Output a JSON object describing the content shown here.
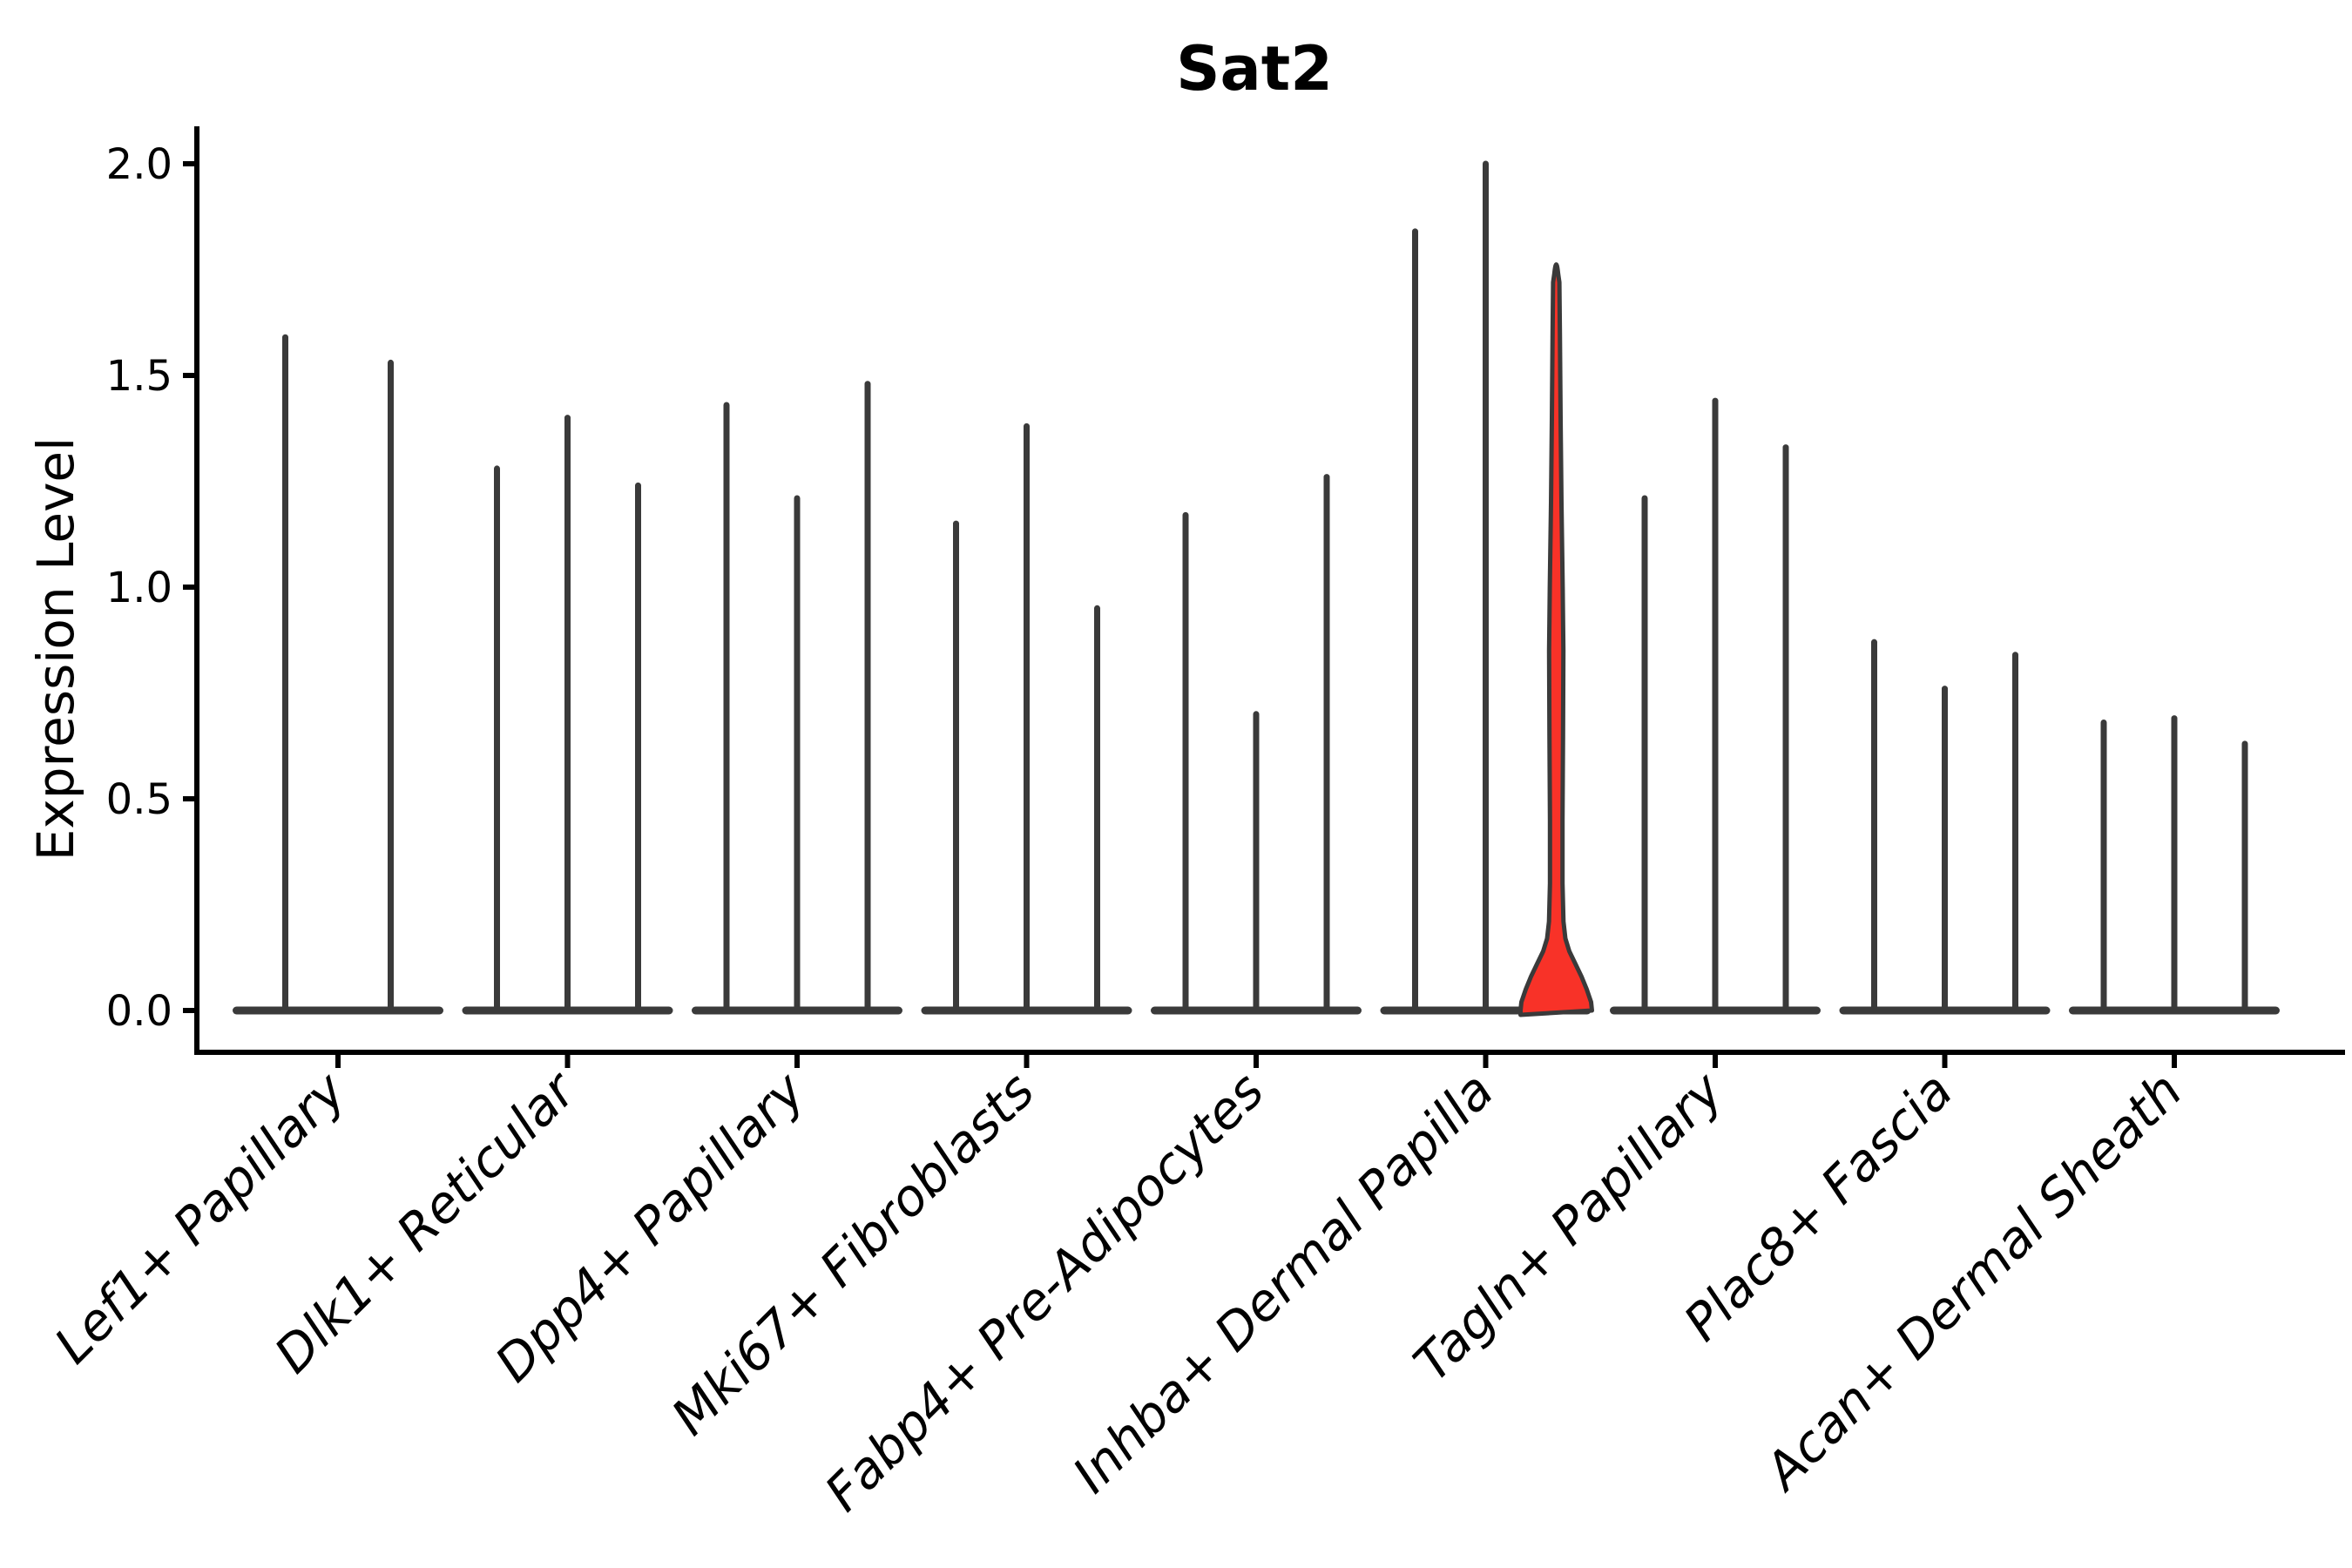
{
  "title": "Sat2",
  "y_axis": {
    "label": "Expression Level",
    "tick_labels": [
      "0.0",
      "0.5",
      "1.0",
      "1.5",
      "2.0"
    ]
  },
  "colors": {
    "violin": "#3a3a3a",
    "highlight_fill": "#f83228",
    "axis": "#000000",
    "background": "#ffffff"
  },
  "chart_data": {
    "type": "violin",
    "title": "Sat2",
    "xlabel": "",
    "ylabel": "Expression Level",
    "ylim": [
      0,
      2.1
    ],
    "yticks": [
      {
        "v": 0.0,
        "label": "0.0"
      },
      {
        "v": 0.5,
        "label": "0.5"
      },
      {
        "v": 1.0,
        "label": "1.0"
      },
      {
        "v": 1.5,
        "label": "1.5"
      },
      {
        "v": 2.0,
        "label": "2.0"
      }
    ],
    "categories": [
      "Lef1+ Papillary",
      "Dlk1+ Reticular",
      "Dpp4+ Papillary",
      "Mki67+ Fibroblasts",
      "Fabp4+ Pre-Adipocytes",
      "Inhba+ Dermal Papilla",
      "Tagln+ Papillary",
      "Plac8+ Fascia",
      "Acan+ Dermal Sheath"
    ],
    "legend": "none",
    "grid": false,
    "groups": [
      {
        "category": "Lef1+ Papillary",
        "violins": [
          {
            "max": 1.59
          },
          {
            "max": 1.53
          }
        ]
      },
      {
        "category": "Dlk1+ Reticular",
        "violins": [
          {
            "max": 1.28
          },
          {
            "max": 1.4
          },
          {
            "max": 1.24
          }
        ]
      },
      {
        "category": "Dpp4+ Papillary",
        "violins": [
          {
            "max": 1.43
          },
          {
            "max": 1.21
          },
          {
            "max": 1.48
          }
        ]
      },
      {
        "category": "Mki67+ Fibroblasts",
        "violins": [
          {
            "max": 1.15
          },
          {
            "max": 1.38
          },
          {
            "max": 0.95
          }
        ]
      },
      {
        "category": "Fabp4+ Pre-Adipocytes",
        "violins": [
          {
            "max": 1.17
          },
          {
            "max": 0.7
          },
          {
            "max": 1.26
          }
        ]
      },
      {
        "category": "Inhba+ Dermal Papilla",
        "violins": [
          {
            "max": 1.84
          },
          {
            "max": 2.0
          },
          {
            "max": 1.78,
            "highlight": true
          }
        ]
      },
      {
        "category": "Tagln+ Papillary",
        "violins": [
          {
            "max": 1.21
          },
          {
            "max": 1.44
          },
          {
            "max": 1.33
          }
        ]
      },
      {
        "category": "Plac8+ Fascia",
        "violins": [
          {
            "max": 0.87
          },
          {
            "max": 0.76
          },
          {
            "max": 0.84
          }
        ]
      },
      {
        "category": "Acan+ Dermal Sheath",
        "violins": [
          {
            "max": 0.68
          },
          {
            "max": 0.69
          },
          {
            "max": 0.63
          }
        ]
      }
    ]
  }
}
